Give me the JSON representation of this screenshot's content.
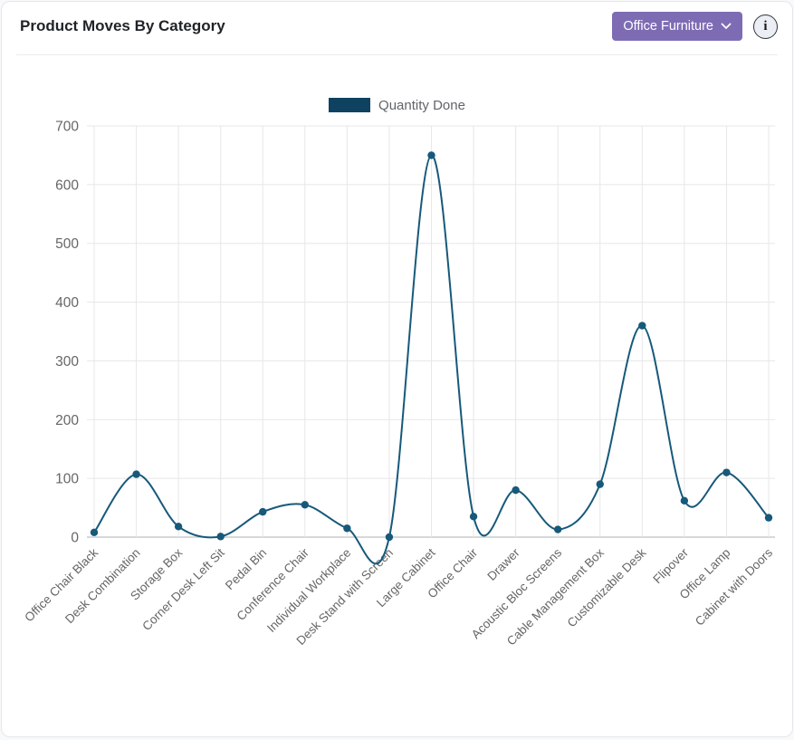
{
  "header": {
    "title": "Product Moves By Category",
    "category_selector": {
      "label": "Office Furniture"
    },
    "info_glyph": "i"
  },
  "legend": {
    "label": "Quantity Done"
  },
  "chart_data": {
    "type": "line",
    "title": "Product Moves By Category",
    "categories": [
      "Office Chair Black",
      "Desk Combination",
      "Storage Box",
      "Corner Desk Left Sit",
      "Pedal Bin",
      "Conference Chair",
      "Individual Workplace",
      "Desk Stand with Screen",
      "Large Cabinet",
      "Office Chair",
      "Drawer",
      "Acoustic Bloc Screens",
      "Cable Management Box",
      "Customizable Desk",
      "Flipover",
      "Office Lamp",
      "Cabinet with Doors"
    ],
    "series": [
      {
        "name": "Quantity Done",
        "values": [
          8,
          107,
          18,
          1,
          43,
          55,
          15,
          0,
          650,
          35,
          80,
          13,
          90,
          360,
          62,
          110,
          33
        ]
      }
    ],
    "xlabel": "",
    "ylabel": "",
    "ylim": [
      0,
      700
    ],
    "yticks": [
      0,
      100,
      200,
      300,
      400,
      500,
      600,
      700
    ],
    "grid": true,
    "legend_position": "top",
    "colors": {
      "line": "#17597a",
      "point": "#17597a",
      "legend_swatch": "#0e4260",
      "grid": "#e7e7e7",
      "axis": "#aeb2b6",
      "tick_label": "#666666",
      "accent_purple": "#7d6cb4"
    }
  }
}
